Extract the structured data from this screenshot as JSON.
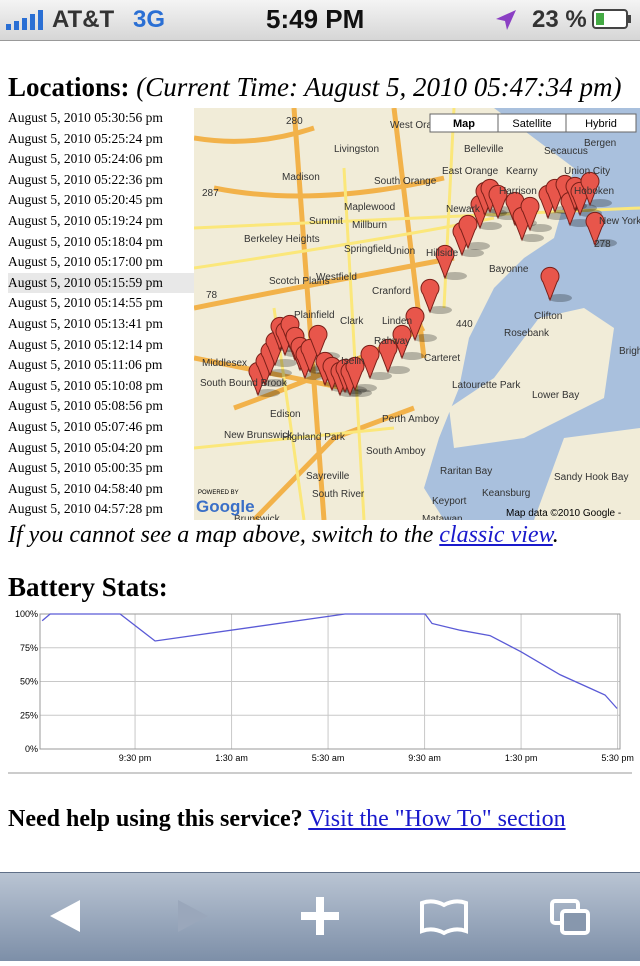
{
  "status_bar": {
    "carrier": "AT&T",
    "network": "3G",
    "time": "5:49 PM",
    "battery": "23 %"
  },
  "locations": {
    "heading": "Locations:",
    "current_time": "(Current Time: August 5, 2010 05:47:34 pm)",
    "timestamps": [
      "August 5, 2010 05:30:56 pm",
      "August 5, 2010 05:25:24 pm",
      "August 5, 2010 05:24:06 pm",
      "August 5, 2010 05:22:36 pm",
      "August 5, 2010 05:20:45 pm",
      "August 5, 2010 05:19:24 pm",
      "August 5, 2010 05:18:04 pm",
      "August 5, 2010 05:17:00 pm",
      "August 5, 2010 05:15:59 pm",
      "August 5, 2010 05:14:55 pm",
      "August 5, 2010 05:13:41 pm",
      "August 5, 2010 05:12:14 pm",
      "August 5, 2010 05:11:06 pm",
      "August 5, 2010 05:10:08 pm",
      "August 5, 2010 05:08:56 pm",
      "August 5, 2010 05:07:46 pm",
      "August 5, 2010 05:04:20 pm",
      "August 5, 2010 05:00:35 pm",
      "August 5, 2010 04:58:40 pm",
      "August 5, 2010 04:57:28 pm"
    ]
  },
  "map": {
    "buttons": [
      "Map",
      "Satellite",
      "Hybrid"
    ],
    "attribution": "Map data ©2010 Google -",
    "powered_by": "POWERED BY",
    "logo": "Google",
    "labels": [
      "Livingston",
      "Belleville",
      "Secaucus",
      "Bergen",
      "East Orange",
      "Kearny",
      "Union City",
      "Madison",
      "South Orange",
      "Harrison",
      "Hoboken",
      "Newark",
      "Maplewood",
      "Summit",
      "Millburn",
      "Berkeley Heights",
      "Springfield",
      "Union",
      "Hillside",
      "Scotch Plains",
      "Westfield",
      "Cranford",
      "Bayonne",
      "Plainfield",
      "Clark",
      "Linden",
      "Rosebank",
      "Rahway",
      "Carteret",
      "Middlesex",
      "Iselin",
      "South Bound Brook",
      "Edison",
      "Lower Bay",
      "Latourette Park",
      "Perth Amboy",
      "New Brunswick",
      "Highland Park",
      "South Amboy",
      "Raritan Bay",
      "Sayreville",
      "Sandy Hook Bay",
      "South River",
      "Keyport",
      "Keansburg",
      "Matawan",
      "Brunswick",
      "Brighton",
      "New York",
      "West Orange",
      "Clifton",
      "280",
      "78",
      "287",
      "440",
      "278"
    ]
  },
  "fallback": {
    "text": "If you cannot see a map above, switch to the ",
    "link": "classic view",
    "end": "."
  },
  "battery": {
    "title": "Battery Stats:",
    "chart_data": {
      "type": "line",
      "x": [
        17.65,
        17.98,
        20.88,
        22.33,
        30.2,
        33.52,
        33.81,
        34.97,
        36.21,
        37.5,
        39.12,
        40.36,
        40.98,
        41.48
      ],
      "series": [
        {
          "name": "Battery",
          "color": "#5a5ad6",
          "values": [
            95,
            100,
            100,
            80,
            100,
            100,
            93,
            88,
            84,
            72,
            55,
            45,
            40,
            30
          ]
        }
      ],
      "xlim": [
        17.56,
        41.6
      ],
      "xticks": [
        {
          "value": 21.5,
          "label": "9:30 pm"
        },
        {
          "value": 25.5,
          "label": "1:30 am"
        },
        {
          "value": 29.5,
          "label": "5:30 am"
        },
        {
          "value": 33.5,
          "label": "9:30 am"
        },
        {
          "value": 37.5,
          "label": "1:30 pm"
        },
        {
          "value": 41.5,
          "label": "5:30 pm"
        }
      ],
      "ylim": [
        0,
        100
      ],
      "yticks": [
        {
          "value": 0,
          "label": "0%"
        },
        {
          "value": 25,
          "label": "25%"
        },
        {
          "value": 50,
          "label": "50%"
        },
        {
          "value": 75,
          "label": "75%"
        },
        {
          "value": 100,
          "label": "100%"
        }
      ],
      "grid": true
    }
  },
  "help": {
    "text": "Need help using this service?",
    "link": "Visit the \"How To\" section"
  }
}
